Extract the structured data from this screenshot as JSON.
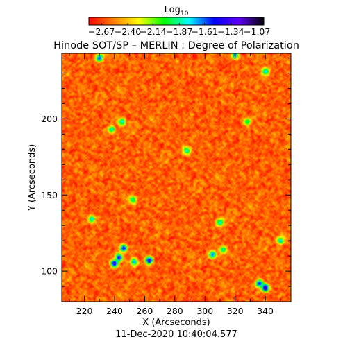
{
  "chart_data": {
    "type": "heatmap",
    "title": "Hinode SOT/SP – MERLIN : Degree of Polarization",
    "xlabel": "X (Arcseconds)",
    "ylabel": "Y (Arcseconds)",
    "xlim": [
      205,
      357
    ],
    "ylim": [
      80,
      243
    ],
    "x_ticks": [
      220,
      240,
      260,
      280,
      300,
      320,
      340
    ],
    "y_ticks": [
      100,
      150,
      200
    ],
    "timestamp": "11-Dec-2020 10:40:04.577",
    "colorbar": {
      "label_base": "Log",
      "label_sub": "10",
      "range": [
        -2.8,
        -1.0
      ],
      "tick_values": [
        -2.67,
        -2.4,
        -2.14,
        -1.87,
        -1.61,
        -1.34,
        -1.07
      ],
      "tick_labels": [
        "−2.67",
        "−2.40",
        "−2.14",
        "−1.87",
        "−1.61",
        "−1.34",
        "−1.07"
      ],
      "colormap": [
        "#ff0000",
        "#ff7f00",
        "#ffff00",
        "#00ff00",
        "#00ffff",
        "#0000ff",
        "#6000ff",
        "#000000"
      ]
    },
    "background_value": -2.6,
    "patches": [
      {
        "x": 240,
        "y": 105,
        "value": -1.25
      },
      {
        "x": 243,
        "y": 109,
        "value": -1.3
      },
      {
        "x": 246,
        "y": 115,
        "value": -1.4
      },
      {
        "x": 253,
        "y": 106,
        "value": -1.6
      },
      {
        "x": 263,
        "y": 107,
        "value": -1.2
      },
      {
        "x": 340,
        "y": 89,
        "value": -1.1
      },
      {
        "x": 336,
        "y": 92,
        "value": -1.45
      },
      {
        "x": 230,
        "y": 240,
        "value": -1.5
      },
      {
        "x": 320,
        "y": 242,
        "value": -1.55
      },
      {
        "x": 340,
        "y": 231,
        "value": -1.7
      },
      {
        "x": 245,
        "y": 198,
        "value": -1.75
      },
      {
        "x": 238,
        "y": 193,
        "value": -1.8
      },
      {
        "x": 310,
        "y": 132,
        "value": -1.7
      },
      {
        "x": 305,
        "y": 111,
        "value": -1.55
      },
      {
        "x": 312,
        "y": 114,
        "value": -1.8
      },
      {
        "x": 225,
        "y": 134,
        "value": -1.75
      },
      {
        "x": 252,
        "y": 147,
        "value": -1.85
      },
      {
        "x": 350,
        "y": 120,
        "value": -1.75
      },
      {
        "x": 288,
        "y": 179,
        "value": -1.85
      },
      {
        "x": 328,
        "y": 198,
        "value": -1.9
      }
    ]
  }
}
